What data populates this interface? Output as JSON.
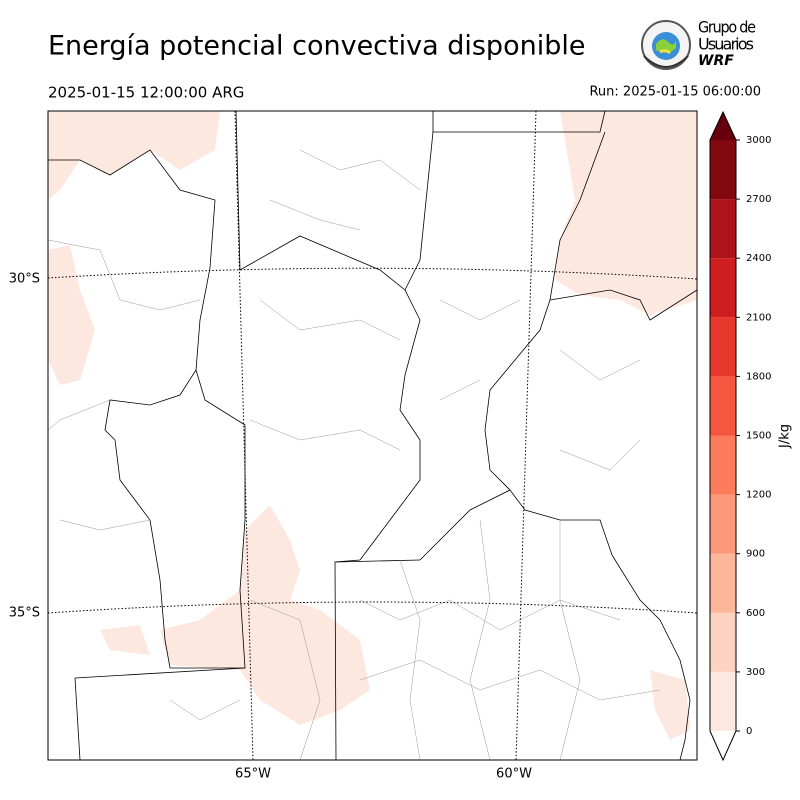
{
  "header": {
    "title": "Energía potencial convectiva disponible",
    "valid_time": "2025-01-15 12:00:00 ARG",
    "run": "Run: 2025-01-15 06:00:00"
  },
  "logo": {
    "line1": "Grupo de",
    "line2": "Usuarios",
    "line3": "WRF"
  },
  "map": {
    "lat_labels": [
      "30°S",
      "35°S"
    ],
    "lon_labels": [
      "65°W",
      "60°W"
    ]
  },
  "colorbar": {
    "label": "J/kg",
    "lim": [
      0,
      3000
    ],
    "ticks": [
      0,
      300,
      600,
      900,
      1200,
      1500,
      1800,
      2100,
      2400,
      2700,
      3000
    ],
    "colors": [
      "#fee8df",
      "#fcd2c0",
      "#fcb69a",
      "#fc997a",
      "#fb7b5b",
      "#f5573e",
      "#e8382d",
      "#cf1c1f",
      "#ad1419",
      "#82080f"
    ],
    "over_color": "#67000d",
    "under_color": "#ffffff"
  }
}
